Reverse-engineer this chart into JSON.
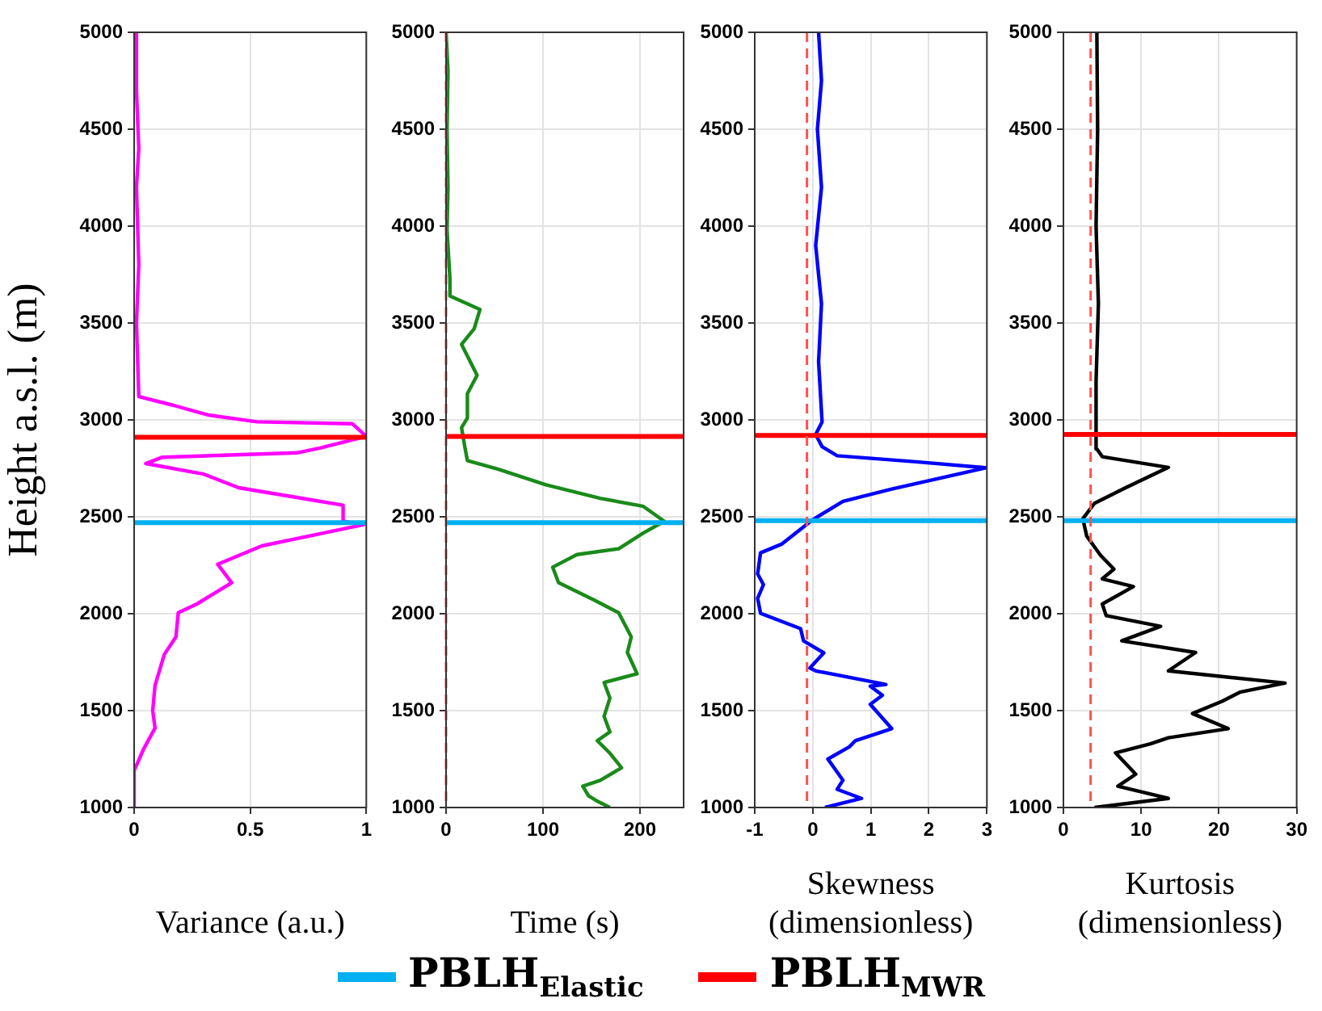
{
  "chart_data": [
    {
      "type": "line",
      "ylabel": "Height a.s.l. (m)",
      "xlabel": "Variance (a.u.)",
      "xlim": [
        0,
        1
      ],
      "xticks": [
        0,
        0.5,
        1
      ],
      "ylim": [
        1000,
        5000
      ],
      "yticks": [
        1000,
        1500,
        2000,
        2500,
        3000,
        3500,
        4000,
        4500,
        5000
      ],
      "grid": true,
      "legend": "bottom",
      "series": [
        {
          "color": "#ff00ff",
          "x": [
            0,
            0,
            0.04,
            0.09,
            0.08,
            0.09,
            0.13,
            0.18,
            0.19,
            0.27,
            0.42,
            0.36,
            0.45,
            0.55,
            0.79,
            0.99,
            0.9,
            0.9,
            0.7,
            0.45,
            0.3,
            0.05,
            0.12,
            0.7,
            0.8,
            1,
            0.94,
            0.53,
            0.32,
            0.17,
            0.02,
            0.01,
            0.02,
            0.01,
            0.02,
            0.01,
            0.01
          ],
          "values": [
            1000,
            1190,
            1300,
            1410,
            1500,
            1630,
            1790,
            1880,
            2005,
            2050,
            2160,
            2255,
            2300,
            2350,
            2410,
            2460,
            2477,
            2560,
            2600,
            2650,
            2720,
            2775,
            2807,
            2830,
            2855,
            2915,
            2980,
            2990,
            3025,
            3075,
            3120,
            3500,
            3800,
            4200,
            4400,
            4700,
            5000
          ]
        }
      ],
      "ref_lines": [
        {
          "axis": "y",
          "value": 2470,
          "label": "PBLH$_{Elastic}$",
          "color": "#00b0f0",
          "line_style": "solid"
        },
        {
          "axis": "y",
          "value": 2910,
          "label": "PBLH$_{MWR}$",
          "color": "#ff0000",
          "line_style": "solid"
        }
      ]
    },
    {
      "type": "line",
      "xlabel": "Time (s)",
      "xlim": [
        0,
        245
      ],
      "xticks": [
        0,
        100,
        200
      ],
      "ylim": [
        1000,
        5000
      ],
      "yticks": [
        1000,
        1500,
        2000,
        2500,
        3000,
        3500,
        4000,
        4500,
        5000
      ],
      "grid": true,
      "series": [
        {
          "color": "#1a8a1a",
          "x": [
            169,
            157,
            147,
            141,
            159,
            181,
            169,
            156,
            169,
            163,
            169,
            163,
            197,
            187,
            191,
            178,
            153,
            116,
            110,
            135,
            178,
            203,
            225,
            203,
            159,
            103,
            54,
            22,
            19,
            16,
            22,
            22,
            32,
            16,
            29,
            35,
            4,
            4,
            1,
            2,
            1,
            2,
            0
          ],
          "values": [
            1000,
            1030,
            1060,
            1110,
            1140,
            1205,
            1280,
            1345,
            1390,
            1470,
            1565,
            1645,
            1690,
            1800,
            1880,
            2005,
            2070,
            2160,
            2240,
            2305,
            2335,
            2415,
            2477,
            2555,
            2595,
            2665,
            2745,
            2790,
            2870,
            2960,
            3010,
            3135,
            3230,
            3390,
            3470,
            3570,
            3640,
            3730,
            3980,
            4200,
            4500,
            4800,
            5000
          ]
        }
      ],
      "ref_lines": [
        {
          "axis": "y",
          "value": 2470,
          "color": "#00b0f0",
          "line_style": "solid"
        },
        {
          "axis": "y",
          "value": 2915,
          "color": "#ff0000",
          "line_style": "solid"
        },
        {
          "axis": "x",
          "value": 0,
          "color": "#ff5050",
          "line_style": "dashed"
        }
      ]
    },
    {
      "type": "line",
      "xlabel": "Skewness (dimensionless)",
      "xlim": [
        -1,
        3
      ],
      "xticks": [
        -1,
        0,
        1,
        2,
        3
      ],
      "ylim": [
        1000,
        5000
      ],
      "yticks": [
        1000,
        1500,
        2000,
        2500,
        3000,
        3500,
        4000,
        4500,
        5000
      ],
      "grid": true,
      "series": [
        {
          "color": "#0000ff",
          "x": [
            0.21,
            0.84,
            0.42,
            0.52,
            0.26,
            0.63,
            0.73,
            1.36,
            0.99,
            1.2,
            0.99,
            1.26,
            0.05,
            -0.05,
            0.19,
            -0.16,
            -0.21,
            -0.9,
            -0.95,
            -0.85,
            -0.95,
            -0.9,
            -0.53,
            0,
            0.52,
            1.36,
            2.98,
            1.78,
            0.42,
            0.16,
            0.05,
            0.16,
            0.1,
            0.15,
            0.05,
            0.15,
            0.08,
            0.15,
            0.1
          ],
          "values": [
            1000,
            1047,
            1094,
            1141,
            1250,
            1313,
            1344,
            1407,
            1532,
            1579,
            1626,
            1635,
            1705,
            1720,
            1798,
            1860,
            1923,
            2002,
            2080,
            2150,
            2205,
            2314,
            2360,
            2485,
            2580,
            2643,
            2753,
            2784,
            2815,
            2862,
            2925,
            2990,
            3300,
            3600,
            3900,
            4200,
            4500,
            4750,
            5000
          ]
        }
      ],
      "ref_lines": [
        {
          "axis": "y",
          "value": 2480,
          "color": "#00b0f0",
          "line_style": "solid"
        },
        {
          "axis": "y",
          "value": 2920,
          "color": "#ff0000",
          "line_style": "solid"
        },
        {
          "axis": "x",
          "value": -0.1,
          "color": "#ff5050",
          "line_style": "dashed"
        }
      ]
    },
    {
      "type": "line",
      "xlabel": "Kurtosis (dimensionless)",
      "xlim": [
        0,
        30
      ],
      "xticks": [
        0,
        10,
        20,
        30
      ],
      "ylim": [
        1000,
        5000
      ],
      "yticks": [
        1000,
        1500,
        2000,
        2500,
        3000,
        3500,
        4000,
        4500,
        5000
      ],
      "grid": true,
      "series": [
        {
          "color": "#000000",
          "x": [
            4,
            13.5,
            7,
            9.3,
            6.7,
            11.2,
            13.5,
            21.2,
            16.6,
            20.4,
            22.7,
            28.5,
            13.5,
            17,
            7.5,
            12.5,
            5.5,
            5,
            9,
            5,
            6.5,
            4.8,
            3,
            2.5,
            4,
            8,
            13.5,
            5,
            4.3,
            4.2,
            4.5,
            4.2,
            4.4,
            4.3
          ],
          "values": [
            1000,
            1047,
            1110,
            1172,
            1282,
            1329,
            1360,
            1407,
            1485,
            1548,
            1595,
            1642,
            1705,
            1800,
            1860,
            1935,
            1990,
            2050,
            2140,
            2180,
            2230,
            2300,
            2400,
            2490,
            2570,
            2650,
            2755,
            2810,
            2850,
            3200,
            3600,
            4000,
            4500,
            5000
          ]
        }
      ],
      "ref_lines": [
        {
          "axis": "y",
          "value": 2480,
          "color": "#00b0f0",
          "line_style": "solid"
        },
        {
          "axis": "y",
          "value": 2925,
          "color": "#ff0000",
          "line_style": "solid"
        },
        {
          "axis": "x",
          "value": 3.5,
          "color": "#ff5050",
          "line_style": "dashed"
        }
      ]
    }
  ]
}
